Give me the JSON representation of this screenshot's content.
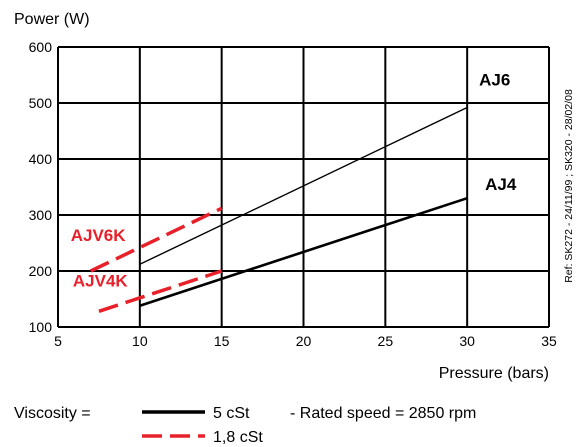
{
  "chart_data": {
    "type": "line",
    "ylabel": "Power (W)",
    "xlabel": "Pressure (bars)",
    "xlim": [
      5,
      35
    ],
    "ylim": [
      100,
      600
    ],
    "x_ticks": [
      5,
      10,
      15,
      20,
      25,
      30,
      35
    ],
    "y_ticks": [
      100,
      200,
      300,
      400,
      500,
      600
    ],
    "grid": true,
    "series": [
      {
        "name": "AJ6",
        "style": "solid",
        "color": "#000000",
        "weight": "thin",
        "x": [
          10,
          30
        ],
        "y": [
          212,
          492
        ]
      },
      {
        "name": "AJ4",
        "style": "solid",
        "color": "#000000",
        "weight": "thick",
        "x": [
          10,
          30
        ],
        "y": [
          138,
          330
        ]
      },
      {
        "name": "AJV6K",
        "style": "dashed",
        "color": "#e8202a",
        "x": [
          7,
          15
        ],
        "y": [
          200,
          312
        ]
      },
      {
        "name": "AJV4K",
        "style": "dashed",
        "color": "#e8202a",
        "x": [
          7.5,
          15
        ],
        "y": [
          128,
          200
        ]
      }
    ],
    "legend": {
      "label": "Viscosity =",
      "entries": [
        {
          "style": "solid",
          "color": "#000000",
          "text": "5 cSt"
        },
        {
          "style": "dashed",
          "color": "#e8202a",
          "text": "1,8 cSt"
        }
      ],
      "note": "- Rated speed = 2850 rpm"
    },
    "reference": "Ref: SK272 - 24/11/99 ; SK320 - 28/02/08"
  }
}
